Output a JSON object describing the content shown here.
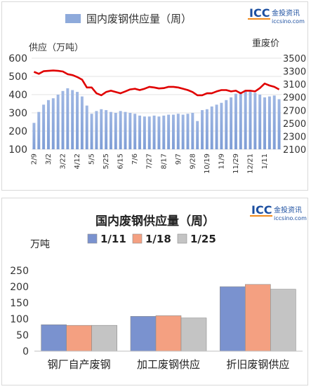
{
  "brand": {
    "logo_text": "ICC",
    "name_cn": "金投资讯",
    "domain": "iccsino.com",
    "colors": {
      "logo_blue": "#1c4fa0",
      "logo_orange": "#f08a1c"
    }
  },
  "chart_data": [
    {
      "type": "bar",
      "title": "",
      "legend": [
        {
          "name": "国内废钢供应量（周）",
          "color": "#8eaadb"
        }
      ],
      "ylabel_left": "供应（万吨）",
      "ylabel_right": "重废价",
      "ylim": [
        100,
        600
      ],
      "yticks": [
        100,
        200,
        300,
        400,
        500,
        600
      ],
      "ylim_right": [
        2100,
        3500
      ],
      "yticks_right": [
        2100,
        2300,
        2500,
        2700,
        2900,
        3100,
        3300,
        3500
      ],
      "xtick_labels": [
        "2/9",
        "3/2",
        "3/22",
        "4/12",
        "5/5",
        "5/25",
        "6/15",
        "7/6",
        "7/27",
        "8/17",
        "9/7",
        "9/28",
        "10/19",
        "11/9",
        "11/29",
        "12/21",
        "1/11"
      ],
      "xtick_indices": [
        0,
        3,
        6,
        9,
        12,
        15,
        18,
        21,
        24,
        27,
        30,
        33,
        36,
        39,
        42,
        45,
        48
      ],
      "grid": true,
      "series": [
        {
          "kind": "bar",
          "color": "#8eaadb",
          "values": [
            245,
            305,
            345,
            370,
            380,
            400,
            420,
            435,
            425,
            415,
            390,
            340,
            295,
            310,
            320,
            315,
            305,
            300,
            310,
            305,
            300,
            295,
            285,
            280,
            280,
            285,
            280,
            285,
            290,
            290,
            295,
            290,
            295,
            300,
            255,
            315,
            320,
            335,
            345,
            355,
            370,
            385,
            405,
            415,
            425,
            420,
            410,
            400,
            385,
            390,
            395,
            375
          ]
        },
        {
          "kind": "line",
          "axis": "right",
          "color": "#e00000",
          "values": [
            3290,
            3260,
            3300,
            3305,
            3310,
            3305,
            3295,
            3255,
            3240,
            3210,
            3170,
            3050,
            3050,
            2960,
            2930,
            2980,
            3000,
            2980,
            2960,
            2990,
            3020,
            3030,
            3010,
            3030,
            3060,
            3050,
            3035,
            3040,
            3060,
            3060,
            3050,
            3030,
            3010,
            2980,
            2930,
            2930,
            2960,
            2960,
            2990,
            3010,
            3010,
            2990,
            3000,
            2960,
            3000,
            3000,
            2990,
            3040,
            3110,
            3080,
            3060,
            3020
          ]
        }
      ]
    },
    {
      "type": "bar",
      "title": "国内废钢供应量（周）",
      "ylabel": "万吨",
      "ylim": [
        0,
        250
      ],
      "yticks": [
        0,
        50,
        100,
        150,
        200,
        250
      ],
      "grid": false,
      "legend_position": "top",
      "categories": [
        "钢厂自产废钢",
        "加工废钢供应",
        "折旧废钢供应"
      ],
      "series": [
        {
          "name": "1/11",
          "color": "#7a92cf",
          "values": [
            82,
            108,
            200
          ]
        },
        {
          "name": "1/18",
          "color": "#f4a081",
          "values": [
            80,
            110,
            207
          ]
        },
        {
          "name": "1/25",
          "color": "#c4c4c4",
          "values": [
            80,
            103,
            192
          ]
        }
      ]
    }
  ]
}
